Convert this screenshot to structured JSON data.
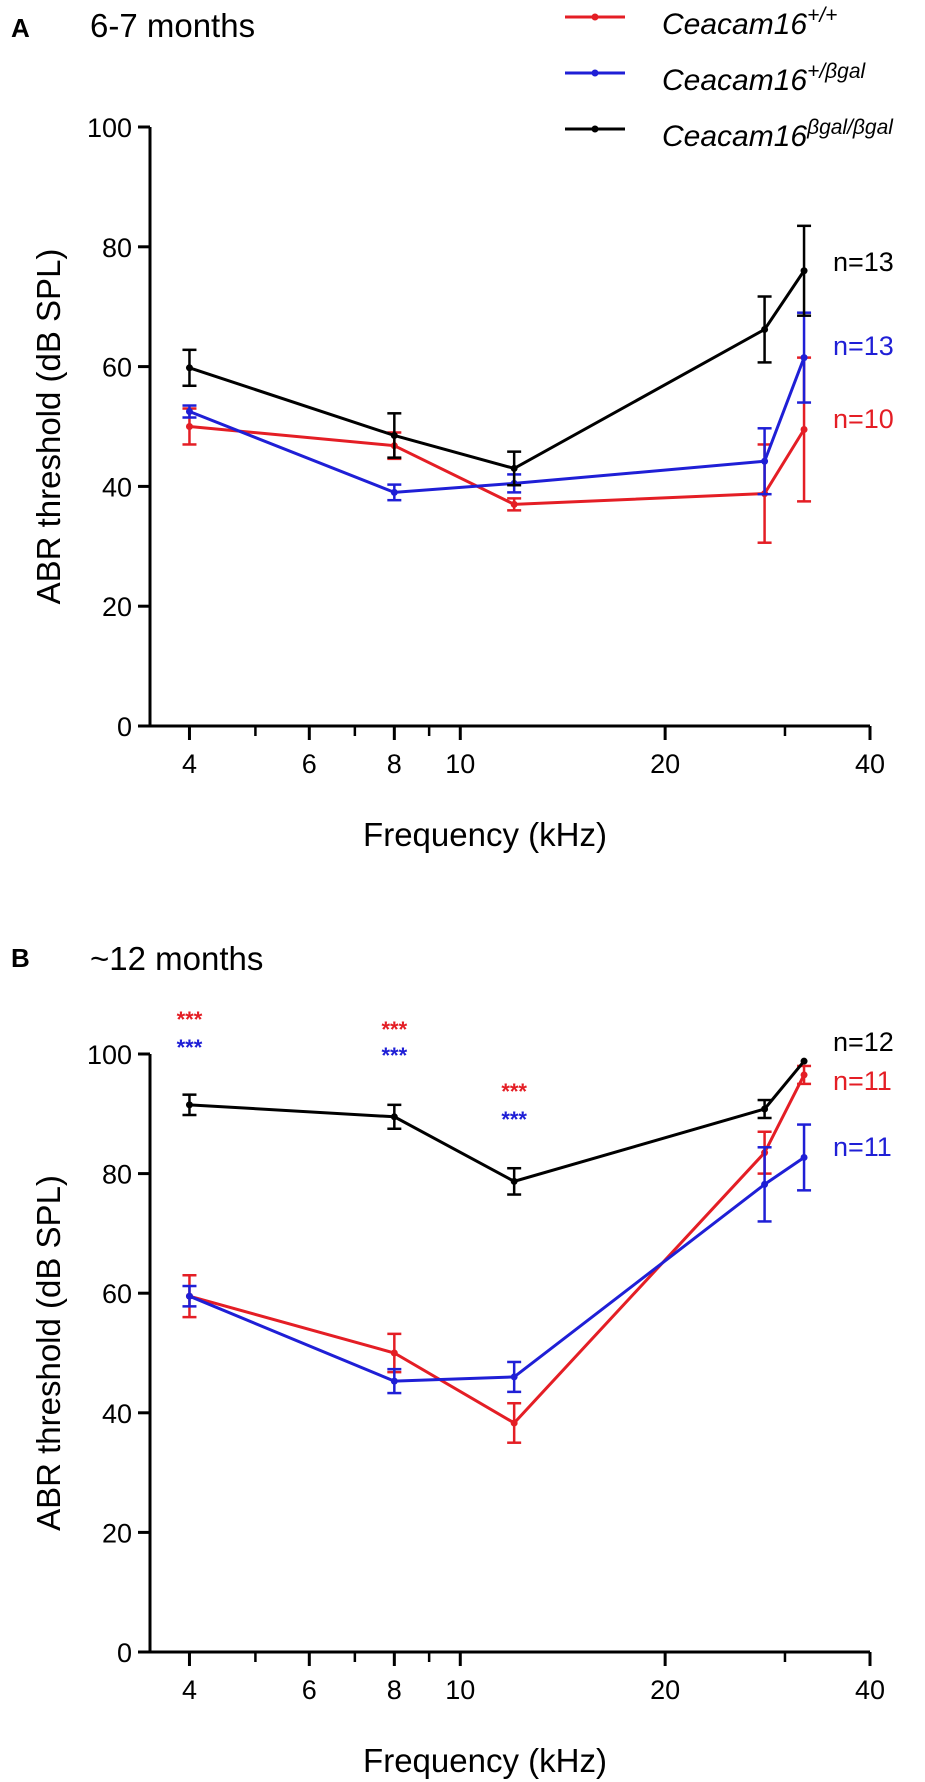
{
  "chart_data": [
    {
      "type": "line",
      "panel": "A",
      "title": "6-7 months",
      "xlabel": "Frequency (kHz)",
      "ylabel": "ABR threshold (dB SPL)",
      "xscale": "log",
      "xlim": [
        3.5,
        40
      ],
      "ylim": [
        0,
        100
      ],
      "x_ticks": [
        4,
        6,
        8,
        10,
        20,
        40
      ],
      "x_ticks_minor": [
        5,
        7,
        9,
        30
      ],
      "y_ticks": [
        0,
        20,
        40,
        60,
        80,
        100
      ],
      "x": [
        4,
        8,
        12,
        28,
        32
      ],
      "series": [
        {
          "name": "Ceacam16",
          "superscript": "+/+",
          "color": "#e41e25",
          "values": [
            50,
            46.8,
            37,
            38.8,
            49.5
          ],
          "errors": [
            3,
            2.2,
            1,
            8.2,
            12
          ]
        },
        {
          "name": "Ceacam16",
          "superscript": "+/βgal",
          "color": "#1f1fd6",
          "values": [
            52.5,
            39,
            40.5,
            44.2,
            61.5
          ],
          "errors": [
            1,
            1.3,
            1.5,
            5.5,
            7.5
          ]
        },
        {
          "name": "Ceacam16",
          "superscript": "βgal/βgal",
          "color": "#000000",
          "values": [
            59.8,
            48.5,
            43,
            66.2,
            76
          ],
          "errors": [
            3,
            3.7,
            2.8,
            5.5,
            7.5
          ]
        }
      ],
      "n_labels": [
        {
          "text": "n=13",
          "color": "#000000"
        },
        {
          "text": "n=13",
          "color": "#1f1fd6"
        },
        {
          "text": "n=10",
          "color": "#e41e25"
        }
      ]
    },
    {
      "type": "line",
      "panel": "B",
      "title": "~12 months",
      "xlabel": "Frequency (kHz)",
      "ylabel": "ABR threshold (dB SPL)",
      "xscale": "log",
      "xlim": [
        3.5,
        40
      ],
      "ylim": [
        0,
        100
      ],
      "x_ticks": [
        4,
        6,
        8,
        10,
        20,
        40
      ],
      "x_ticks_minor": [
        5,
        7,
        9,
        30
      ],
      "y_ticks": [
        0,
        20,
        40,
        60,
        80,
        100
      ],
      "x": [
        4,
        8,
        12,
        28,
        32
      ],
      "series": [
        {
          "name": "Ceacam16",
          "superscript": "+/+",
          "color": "#e41e25",
          "values": [
            59.5,
            50,
            38.3,
            83.5,
            96.5
          ],
          "errors": [
            3.5,
            3.2,
            3.3,
            3.5,
            1.5
          ]
        },
        {
          "name": "Ceacam16",
          "superscript": "+/βgal",
          "color": "#1f1fd6",
          "values": [
            59.5,
            45.3,
            46,
            78.2,
            82.7
          ],
          "errors": [
            1.7,
            2,
            2.5,
            6.2,
            5.5
          ]
        },
        {
          "name": "Ceacam16",
          "superscript": "βgal/βgal",
          "color": "#000000",
          "values": [
            91.5,
            89.5,
            78.7,
            90.8,
            98.8
          ],
          "errors": [
            1.7,
            2,
            2.2,
            1.5,
            0
          ]
        }
      ],
      "n_labels": [
        {
          "text": "n=12",
          "color": "#000000"
        },
        {
          "text": "n=11",
          "color": "#e41e25"
        },
        {
          "text": "n=11",
          "color": "#1f1fd6"
        }
      ],
      "significance": [
        {
          "x": 4,
          "text": "***",
          "colors": [
            "#e41e25",
            "#1f1fd6"
          ]
        },
        {
          "x": 8,
          "text": "***",
          "colors": [
            "#e41e25",
            "#1f1fd6"
          ]
        },
        {
          "x": 12,
          "text": "***",
          "colors": [
            "#e41e25",
            "#1f1fd6"
          ]
        }
      ]
    }
  ]
}
